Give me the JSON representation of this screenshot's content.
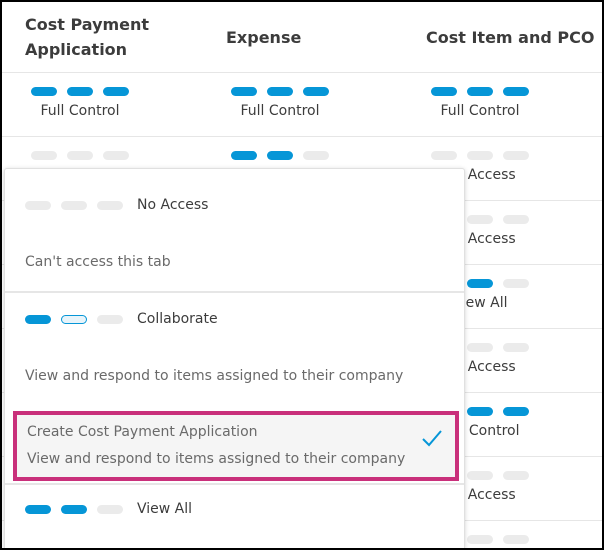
{
  "columns": [
    "Cost Payment Application",
    "Expense",
    "Cost Item and PCO"
  ],
  "rows": [
    {
      "cells": [
        {
          "level": 3,
          "label": "Full Control"
        },
        {
          "level": 3,
          "label": "Full Control"
        },
        {
          "level": 3,
          "label": "Full Control"
        }
      ]
    },
    {
      "cells": [
        {
          "level": 0,
          "label": ""
        },
        {
          "level": 2,
          "label": ""
        },
        {
          "level": 0,
          "label": "No Access"
        }
      ]
    },
    {
      "cells": [
        {
          "level": 0,
          "label": ""
        },
        {
          "level": 0,
          "label": ""
        },
        {
          "level": 0,
          "label": "No Access"
        }
      ]
    },
    {
      "cells": [
        {
          "level": 0,
          "label": ""
        },
        {
          "level": 0,
          "label": ""
        },
        {
          "level": 2,
          "label": "View All"
        }
      ]
    },
    {
      "cells": [
        {
          "level": 0,
          "label": ""
        },
        {
          "level": 0,
          "label": ""
        },
        {
          "level": 0,
          "label": "No Access"
        }
      ]
    },
    {
      "cells": [
        {
          "level": 0,
          "label": ""
        },
        {
          "level": 0,
          "label": ""
        },
        {
          "level": 3,
          "label": "Full Control"
        }
      ]
    },
    {
      "cells": [
        {
          "level": 0,
          "label": ""
        },
        {
          "level": 0,
          "label": ""
        },
        {
          "level": 0,
          "label": "No Access"
        }
      ]
    },
    {
      "cells": [
        {
          "level": 0,
          "label": ""
        },
        {
          "level": 0,
          "label": ""
        },
        {
          "level": 0,
          "label": ""
        }
      ]
    }
  ],
  "dropdown": {
    "no_access": {
      "label": "No Access",
      "desc": "Can't access this tab"
    },
    "collaborate": {
      "label": "Collaborate",
      "desc": "View and respond to items assigned to their company"
    },
    "selected": {
      "label": "Create Cost Payment Application",
      "desc": "View and respond to items assigned to their company",
      "icon": "checkmark-icon"
    },
    "view_all": {
      "label": "View All"
    }
  },
  "colors": {
    "accent": "#0696d7",
    "inactive": "#ebebeb",
    "highlight": "#c9307b"
  }
}
